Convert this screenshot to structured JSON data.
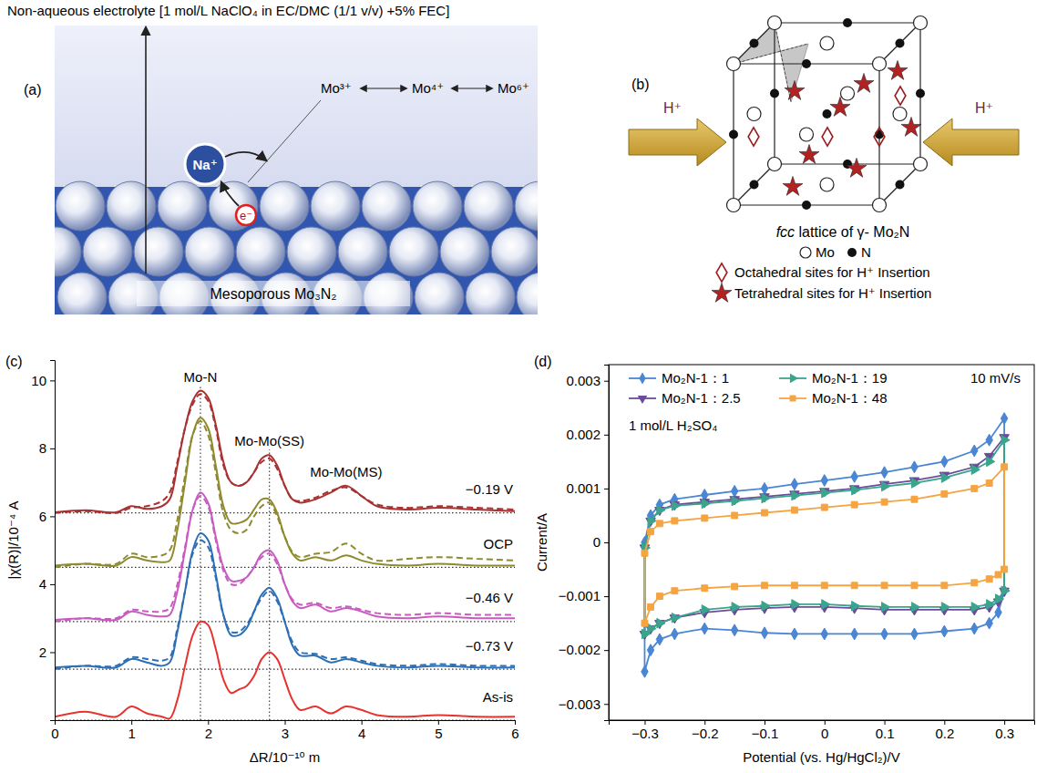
{
  "diagram_a": {
    "panel_label": "(a)",
    "electrolyte": "Non-aqueous electrolyte [1 mol/L NaClO₄ in EC/DMC (1/1 v/v) +5% FEC]",
    "redox": [
      "Mo³⁺",
      "Mo⁴⁺",
      "Mo⁶⁺"
    ],
    "ion": "Na⁺",
    "electron": "e⁻",
    "electrode": "Mesoporous Mo₃N₂"
  },
  "diagram_b": {
    "panel_label": "(b)",
    "proton_labels": [
      "H⁺",
      "H⁺"
    ],
    "caption": "fcc lattice of γ- Mo₂N",
    "atom_legend": [
      "Mo",
      "N"
    ],
    "site_legend": [
      "Octahedral sites for H⁺ Insertion",
      "Tetrahedral sites for H⁺ Insertion"
    ]
  },
  "chart_data": [
    {
      "type": "line",
      "panel_label": "(c)",
      "x_label": "ΔR/10⁻¹⁰ m",
      "y_label": "|χ(R)|/10⁻⁴ A",
      "x": [
        0,
        0.4,
        0.8,
        1.0,
        1.2,
        1.4,
        1.5,
        1.6,
        1.7,
        1.8,
        1.9,
        2.0,
        2.1,
        2.2,
        2.3,
        2.4,
        2.5,
        2.6,
        2.7,
        2.8,
        2.9,
        3.0,
        3.1,
        3.2,
        3.4,
        3.6,
        3.8,
        4.0,
        4.2,
        4.6,
        5.0,
        5.5,
        6.0
      ],
      "xlim": [
        0,
        6
      ],
      "xticks": [
        0,
        1,
        2,
        3,
        4,
        5,
        6
      ],
      "ylim": [
        0,
        10.6
      ],
      "yticks": [
        2,
        4,
        6,
        8,
        10
      ],
      "reference_lines": [
        1.9,
        2.8
      ],
      "annotations": [
        {
          "text": "Mo-N",
          "x": 1.9
        },
        {
          "text": "Mo-Mo(SS)",
          "x": 2.8
        },
        {
          "text": "Mo-Mo(MS)",
          "x": 3.8
        }
      ],
      "series": [
        {
          "name": "−0.19 V",
          "color": "#a83232",
          "line_style": "solid",
          "baseline": 6.1,
          "values": [
            6.12,
            6.18,
            6.12,
            6.3,
            6.22,
            6.3,
            6.5,
            7.5,
            8.6,
            9.4,
            9.7,
            9.5,
            8.7,
            7.6,
            7.0,
            6.9,
            7.0,
            7.3,
            7.7,
            7.8,
            7.5,
            6.9,
            6.5,
            6.4,
            6.5,
            6.7,
            6.9,
            6.6,
            6.3,
            6.2,
            6.25,
            6.2,
            6.15
          ]
        },
        {
          "color": "#a83232",
          "line_style": "dashed",
          "values": [
            6.1,
            6.15,
            6.1,
            6.25,
            6.3,
            6.45,
            6.7,
            7.6,
            8.6,
            9.3,
            9.6,
            9.4,
            8.6,
            7.5,
            7.0,
            6.9,
            7.0,
            7.3,
            7.6,
            7.7,
            7.4,
            6.9,
            6.5,
            6.45,
            6.55,
            6.75,
            6.85,
            6.6,
            6.35,
            6.25,
            6.3,
            6.25,
            6.2
          ]
        },
        {
          "name": "OCP",
          "color": "#8f8a2e",
          "line_style": "solid",
          "baseline": 4.5,
          "values": [
            4.55,
            4.6,
            4.55,
            4.8,
            4.7,
            4.65,
            4.7,
            5.6,
            7.0,
            8.4,
            8.9,
            8.6,
            7.5,
            6.3,
            5.8,
            5.8,
            5.9,
            6.2,
            6.5,
            6.5,
            6.1,
            5.4,
            4.9,
            4.7,
            4.8,
            4.7,
            4.85,
            4.7,
            4.6,
            4.55,
            4.6,
            4.55,
            4.55
          ]
        },
        {
          "color": "#8f8a2e",
          "line_style": "dashed",
          "values": [
            4.5,
            4.6,
            4.6,
            4.9,
            4.8,
            4.85,
            5.0,
            5.9,
            7.2,
            8.4,
            8.8,
            8.4,
            7.3,
            6.1,
            5.6,
            5.5,
            5.6,
            6.0,
            6.3,
            6.4,
            6.0,
            5.4,
            4.95,
            4.8,
            4.9,
            4.95,
            5.2,
            4.9,
            4.7,
            4.75,
            4.8,
            4.75,
            4.7
          ]
        },
        {
          "name": "−0.46 V",
          "color": "#c75bbf",
          "line_style": "solid",
          "baseline": 2.9,
          "values": [
            2.95,
            3.0,
            2.95,
            3.2,
            3.1,
            3.05,
            3.1,
            3.8,
            5.0,
            6.2,
            6.7,
            6.4,
            5.4,
            4.5,
            4.1,
            4.1,
            4.2,
            4.5,
            4.9,
            5.0,
            4.7,
            4.0,
            3.5,
            3.3,
            3.4,
            3.2,
            3.3,
            3.2,
            3.05,
            3.0,
            3.05,
            3.0,
            3.0
          ]
        },
        {
          "color": "#c75bbf",
          "line_style": "dashed",
          "values": [
            2.9,
            3.0,
            3.0,
            3.25,
            3.2,
            3.2,
            3.3,
            4.0,
            5.1,
            6.2,
            6.6,
            6.3,
            5.3,
            4.4,
            4.0,
            4.0,
            4.2,
            4.5,
            4.8,
            4.9,
            4.6,
            4.0,
            3.55,
            3.4,
            3.45,
            3.3,
            3.35,
            3.25,
            3.15,
            3.1,
            3.15,
            3.1,
            3.1
          ]
        },
        {
          "name": "−0.73 V",
          "color": "#2d6fb5",
          "line_style": "solid",
          "baseline": 1.5,
          "values": [
            1.55,
            1.6,
            1.55,
            1.8,
            1.7,
            1.6,
            1.7,
            2.6,
            3.8,
            5.0,
            5.5,
            5.3,
            4.3,
            3.1,
            2.5,
            2.5,
            2.7,
            3.2,
            3.7,
            3.9,
            3.6,
            2.9,
            2.2,
            1.9,
            1.9,
            1.7,
            1.8,
            1.7,
            1.6,
            1.55,
            1.6,
            1.55,
            1.55
          ]
        },
        {
          "color": "#2d6fb5",
          "line_style": "dashed",
          "values": [
            1.5,
            1.6,
            1.6,
            1.85,
            1.8,
            1.75,
            1.85,
            2.7,
            3.8,
            4.9,
            5.3,
            5.1,
            4.2,
            3.1,
            2.6,
            2.6,
            2.8,
            3.2,
            3.6,
            3.8,
            3.5,
            2.9,
            2.3,
            2.0,
            1.95,
            1.8,
            1.85,
            1.75,
            1.65,
            1.6,
            1.65,
            1.6,
            1.6
          ]
        },
        {
          "name": "As-is",
          "color": "#e8322f",
          "line_style": "solid",
          "baseline": 0,
          "values": [
            0.1,
            0.25,
            0.1,
            0.4,
            0.2,
            0.1,
            0.05,
            0.6,
            1.6,
            2.5,
            2.9,
            2.8,
            2.1,
            1.2,
            0.8,
            0.9,
            1.0,
            1.3,
            1.8,
            2.0,
            1.8,
            1.2,
            0.6,
            0.3,
            0.4,
            0.2,
            0.4,
            0.3,
            0.15,
            0.1,
            0.15,
            0.1,
            0.1
          ]
        }
      ]
    },
    {
      "type": "line",
      "panel_label": "(d)",
      "x_label": "Potential (vs. Hg/HgCl₂)/V",
      "y_label": "Current/A",
      "annotations": [
        "10 mV/s",
        "1 mol/L H₂SO₄"
      ],
      "legend": "top",
      "x": [
        -0.3,
        -0.29,
        -0.275,
        -0.25,
        -0.2,
        -0.15,
        -0.1,
        -0.05,
        0,
        0.05,
        0.1,
        0.15,
        0.2,
        0.25,
        0.275,
        0.3,
        0.3,
        0.29,
        0.275,
        0.25,
        0.2,
        0.15,
        0.1,
        0.05,
        0,
        -0.05,
        -0.1,
        -0.15,
        -0.2,
        -0.25,
        -0.275,
        -0.29,
        -0.3
      ],
      "xlim": [
        -0.36,
        0.35
      ],
      "xticks": [
        {
          "value": -0.3,
          "label": "−0.3"
        },
        {
          "value": -0.2,
          "label": "−0.2"
        },
        {
          "value": -0.1,
          "label": "−0.1"
        },
        0,
        0.1,
        0.2,
        0.3
      ],
      "ylim": [
        -0.0033,
        0.0033
      ],
      "yticks": [
        {
          "value": -0.003,
          "label": "−0.003"
        },
        {
          "value": -0.002,
          "label": "−0.002"
        },
        {
          "value": -0.001,
          "label": "−0.001"
        },
        0,
        0.001,
        0.002,
        0.003
      ],
      "series": [
        {
          "name": "Mo₂N-1：1",
          "color": "#4a86d4",
          "marker": "diamond",
          "values": [
            0,
            0.0005,
            0.0007,
            0.0008,
            0.00088,
            0.00095,
            0.001,
            0.00108,
            0.00115,
            0.00122,
            0.0013,
            0.0014,
            0.0015,
            0.0017,
            0.0019,
            0.0023,
            -0.0009,
            -0.0013,
            -0.0015,
            -0.0016,
            -0.00165,
            -0.0017,
            -0.0017,
            -0.0017,
            -0.0017,
            -0.0017,
            -0.00168,
            -0.00163,
            -0.0016,
            -0.0017,
            -0.0018,
            -0.002,
            -0.0024
          ]
        },
        {
          "name": "Mo₂N-1：2.5",
          "color": "#6b4c9a",
          "marker": "triangle-down",
          "values": [
            -0.0001,
            0.0004,
            0.0006,
            0.0007,
            0.00075,
            0.0008,
            0.00085,
            0.0009,
            0.00095,
            0.001,
            0.00108,
            0.00115,
            0.00125,
            0.0014,
            0.0016,
            0.00195,
            -0.0009,
            -0.0011,
            -0.0012,
            -0.00125,
            -0.00125,
            -0.00125,
            -0.00125,
            -0.00122,
            -0.0012,
            -0.0012,
            -0.00122,
            -0.00125,
            -0.0013,
            -0.0014,
            -0.0015,
            -0.0016,
            -0.0017
          ]
        },
        {
          "name": "Mo₂N-1：19",
          "color": "#3aa58c",
          "marker": "triangle-right",
          "values": [
            -0.0001,
            0.0004,
            0.0006,
            0.00068,
            0.00072,
            0.00077,
            0.00082,
            0.00087,
            0.00092,
            0.00097,
            0.00104,
            0.0011,
            0.0012,
            0.00135,
            0.0015,
            0.0019,
            -0.0009,
            -0.00105,
            -0.00115,
            -0.0012,
            -0.0012,
            -0.0012,
            -0.0012,
            -0.00118,
            -0.00115,
            -0.00115,
            -0.00118,
            -0.0012,
            -0.00125,
            -0.0014,
            -0.0015,
            -0.0016,
            -0.0017
          ]
        },
        {
          "name": "Mo₂N-1：48",
          "color": "#f5a442",
          "marker": "square",
          "values": [
            -0.0002,
            0.0002,
            0.00035,
            0.0004,
            0.00045,
            0.0005,
            0.00055,
            0.0006,
            0.00065,
            0.0007,
            0.00075,
            0.0008,
            0.0009,
            0.001,
            0.0011,
            0.0014,
            -0.0005,
            -0.0006,
            -0.00068,
            -0.00075,
            -0.0008,
            -0.0008,
            -0.0008,
            -0.0008,
            -0.0008,
            -0.0008,
            -0.0008,
            -0.00082,
            -0.00085,
            -0.0009,
            -0.001,
            -0.0012,
            -0.0015
          ]
        }
      ]
    }
  ]
}
